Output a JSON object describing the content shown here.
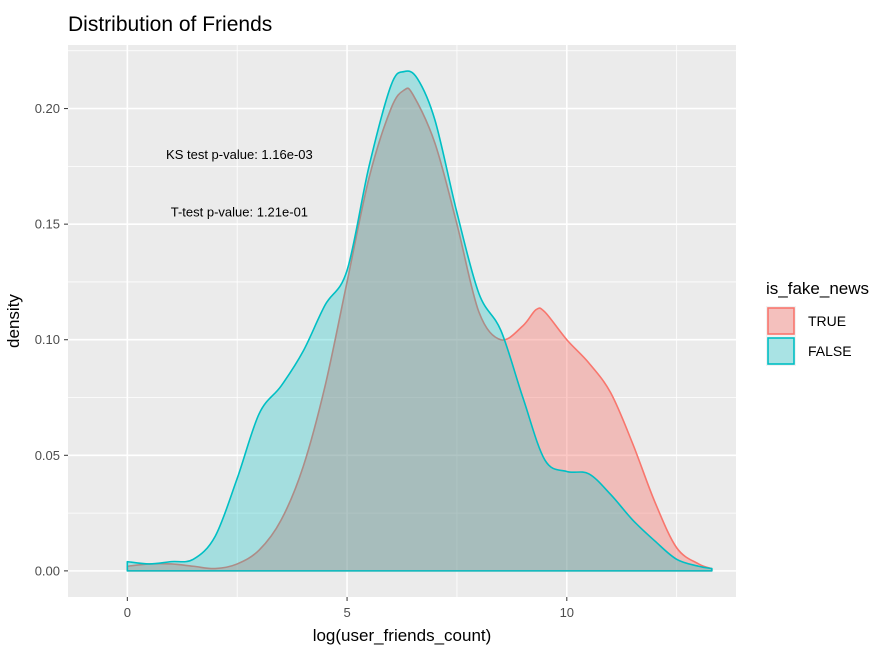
{
  "chart_data": {
    "type": "area",
    "title": "Distribution of Friends",
    "xlabel": "log(user_friends_count)",
    "ylabel": "density",
    "xlim": [
      -1.35,
      13.85
    ],
    "ylim": [
      -0.0113,
      0.2275
    ],
    "x_ticks": [
      0,
      5,
      10
    ],
    "x_tick_labels": [
      "0",
      "5",
      "10"
    ],
    "y_ticks": [
      0,
      0.05,
      0.1,
      0.15,
      0.2
    ],
    "y_tick_labels": [
      "0.00",
      "0.05",
      "0.10",
      "0.15",
      "0.20"
    ],
    "grid": true,
    "legend": {
      "title": "is_fake_news",
      "position": "right",
      "entries": [
        "TRUE",
        "FALSE"
      ]
    },
    "annotations": [
      {
        "text": "KS test p-value: 1.16e-03",
        "x": 2.55,
        "y": 0.18
      },
      {
        "text": "T-test p-value: 1.21e-01",
        "x": 2.55,
        "y": 0.155
      }
    ],
    "series": [
      {
        "name": "TRUE",
        "color": "#F8766D",
        "fill": "rgba(248,118,109,0.4)",
        "x": [
          0,
          0.5,
          1.0,
          1.5,
          2.0,
          2.5,
          3.0,
          3.5,
          4.0,
          4.5,
          5.0,
          5.5,
          6.0,
          6.3,
          6.5,
          7.0,
          7.5,
          8.0,
          8.5,
          9.0,
          9.3,
          9.5,
          10.0,
          10.5,
          11.0,
          11.5,
          12.0,
          12.5,
          13.0,
          13.3
        ],
        "y": [
          0.002,
          0.003,
          0.003,
          0.002,
          0.001,
          0.003,
          0.009,
          0.022,
          0.045,
          0.08,
          0.125,
          0.17,
          0.2,
          0.208,
          0.206,
          0.185,
          0.15,
          0.112,
          0.1,
          0.106,
          0.113,
          0.112,
          0.1,
          0.09,
          0.077,
          0.055,
          0.03,
          0.01,
          0.003,
          0.001
        ]
      },
      {
        "name": "FALSE",
        "color": "#00BFC4",
        "fill": "rgba(0,191,196,0.3)",
        "x": [
          0,
          0.5,
          1.0,
          1.5,
          2.0,
          2.5,
          3.0,
          3.5,
          4.0,
          4.5,
          5.0,
          5.5,
          6.0,
          6.3,
          6.6,
          7.0,
          7.5,
          8.0,
          8.5,
          9.0,
          9.5,
          10.0,
          10.5,
          11.0,
          11.5,
          12.0,
          12.5,
          13.0,
          13.3
        ],
        "y": [
          0.004,
          0.003,
          0.004,
          0.005,
          0.015,
          0.04,
          0.068,
          0.08,
          0.095,
          0.115,
          0.13,
          0.175,
          0.21,
          0.216,
          0.213,
          0.195,
          0.155,
          0.12,
          0.104,
          0.075,
          0.048,
          0.043,
          0.042,
          0.033,
          0.022,
          0.013,
          0.005,
          0.002,
          0.001
        ]
      }
    ]
  }
}
